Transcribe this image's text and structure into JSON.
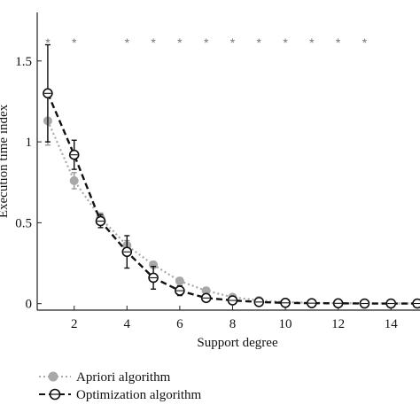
{
  "chart_data": {
    "type": "line",
    "xlabel": "Support degree",
    "ylabel": "Execution time index",
    "xlim": [
      0.6,
      15.1
    ],
    "ylim": [
      -0.04,
      1.8
    ],
    "x_ticks": [
      "2",
      "4",
      "6",
      "8",
      "10",
      "12",
      "14"
    ],
    "y_ticks": [
      "0",
      "0.5",
      "1",
      "1.5"
    ],
    "significance_marker": "*",
    "significance_x": [
      1,
      2,
      4,
      5,
      6,
      7,
      8,
      9,
      10,
      11,
      12,
      13
    ],
    "grid": false,
    "legend_position": "bottom-left",
    "series": [
      {
        "name": "Apriori algorithm",
        "color": "#a8a8a8",
        "line_style": "dotted",
        "marker": "filled-circle",
        "x": [
          1,
          2,
          3,
          4,
          5,
          6,
          7,
          8,
          9,
          10,
          11,
          12,
          13,
          14,
          15
        ],
        "y": [
          1.13,
          0.76,
          0.53,
          0.36,
          0.24,
          0.14,
          0.08,
          0.04,
          0.02,
          0.01,
          0.005,
          0.003,
          0.002,
          0.001,
          0.001
        ],
        "err": [
          0.15,
          0.05,
          0.03,
          0.03,
          0.02,
          0.02,
          0.01,
          0.01,
          0.005,
          0.005,
          0.003,
          0.002,
          0.001,
          0.001,
          0.001
        ]
      },
      {
        "name": "Optimization algorithm",
        "color": "#111111",
        "line_style": "dashed",
        "marker": "open-circle",
        "x": [
          1,
          2,
          3,
          4,
          5,
          6,
          7,
          8,
          9,
          10,
          11,
          12,
          13,
          14,
          15
        ],
        "y": [
          1.3,
          0.92,
          0.51,
          0.32,
          0.16,
          0.08,
          0.035,
          0.02,
          0.01,
          0.005,
          0.003,
          0.002,
          0.001,
          0.001,
          0.001
        ],
        "err": [
          0.3,
          0.09,
          0.04,
          0.1,
          0.07,
          0.03,
          0.015,
          0.01,
          0.005,
          0.004,
          0.002,
          0.001,
          0.001,
          0.001,
          0.001
        ]
      }
    ]
  }
}
